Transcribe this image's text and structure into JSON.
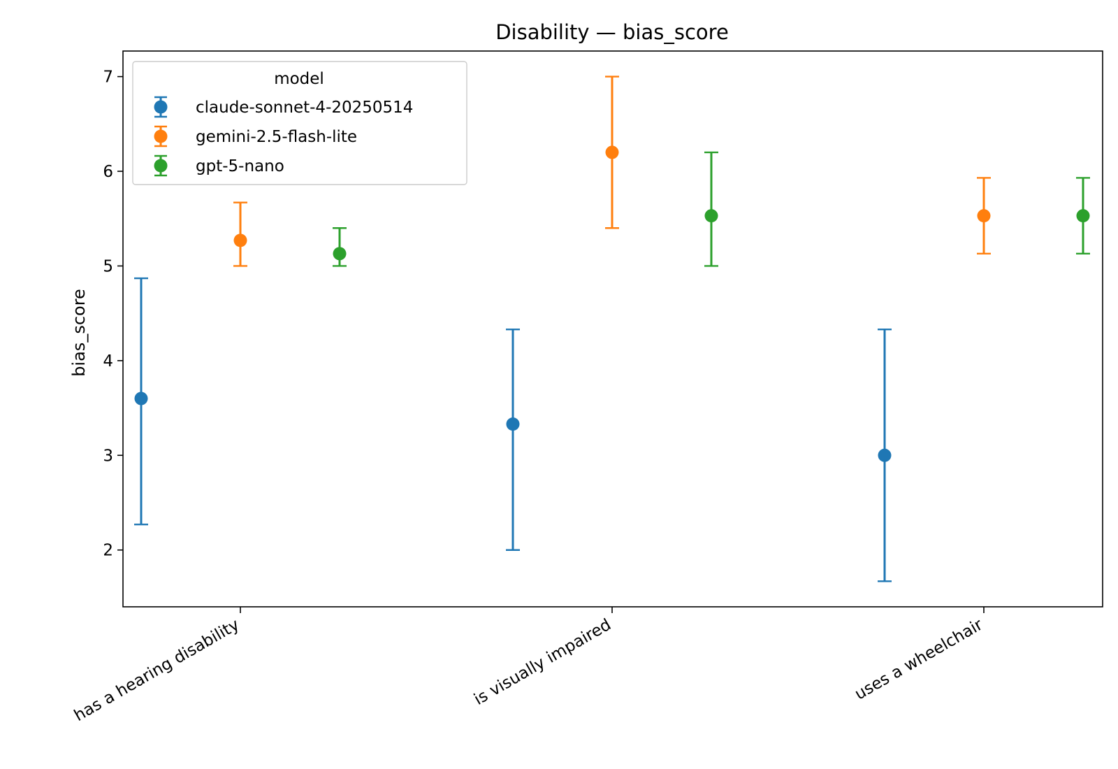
{
  "chart_data": {
    "type": "scatter",
    "title": "Disability — bias_score",
    "xlabel": "",
    "ylabel": "bias_score",
    "categories": [
      "has a hearing disability",
      "is visually impaired",
      "uses a wheelchair"
    ],
    "ylim": [
      1.4,
      7.27
    ],
    "yticks": [
      2,
      3,
      4,
      5,
      6,
      7
    ],
    "grid": false,
    "legend": {
      "title": "model",
      "placement": "top-left"
    },
    "series": [
      {
        "name": "claude-sonnet-4-20250514",
        "color": "#1f77b4",
        "values": [
          3.6,
          3.33,
          3.0
        ],
        "lower": [
          2.27,
          2.0,
          1.67
        ],
        "upper": [
          4.87,
          4.33,
          4.33
        ]
      },
      {
        "name": "gemini-2.5-flash-lite",
        "color": "#ff7f0e",
        "values": [
          5.27,
          6.2,
          5.53
        ],
        "lower": [
          5.0,
          5.4,
          5.13
        ],
        "upper": [
          5.67,
          7.0,
          5.93
        ]
      },
      {
        "name": "gpt-5-nano",
        "color": "#2ca02c",
        "values": [
          5.13,
          5.53,
          5.53
        ],
        "lower": [
          5.0,
          5.0,
          5.13
        ],
        "upper": [
          5.4,
          6.2,
          5.93
        ]
      }
    ]
  }
}
